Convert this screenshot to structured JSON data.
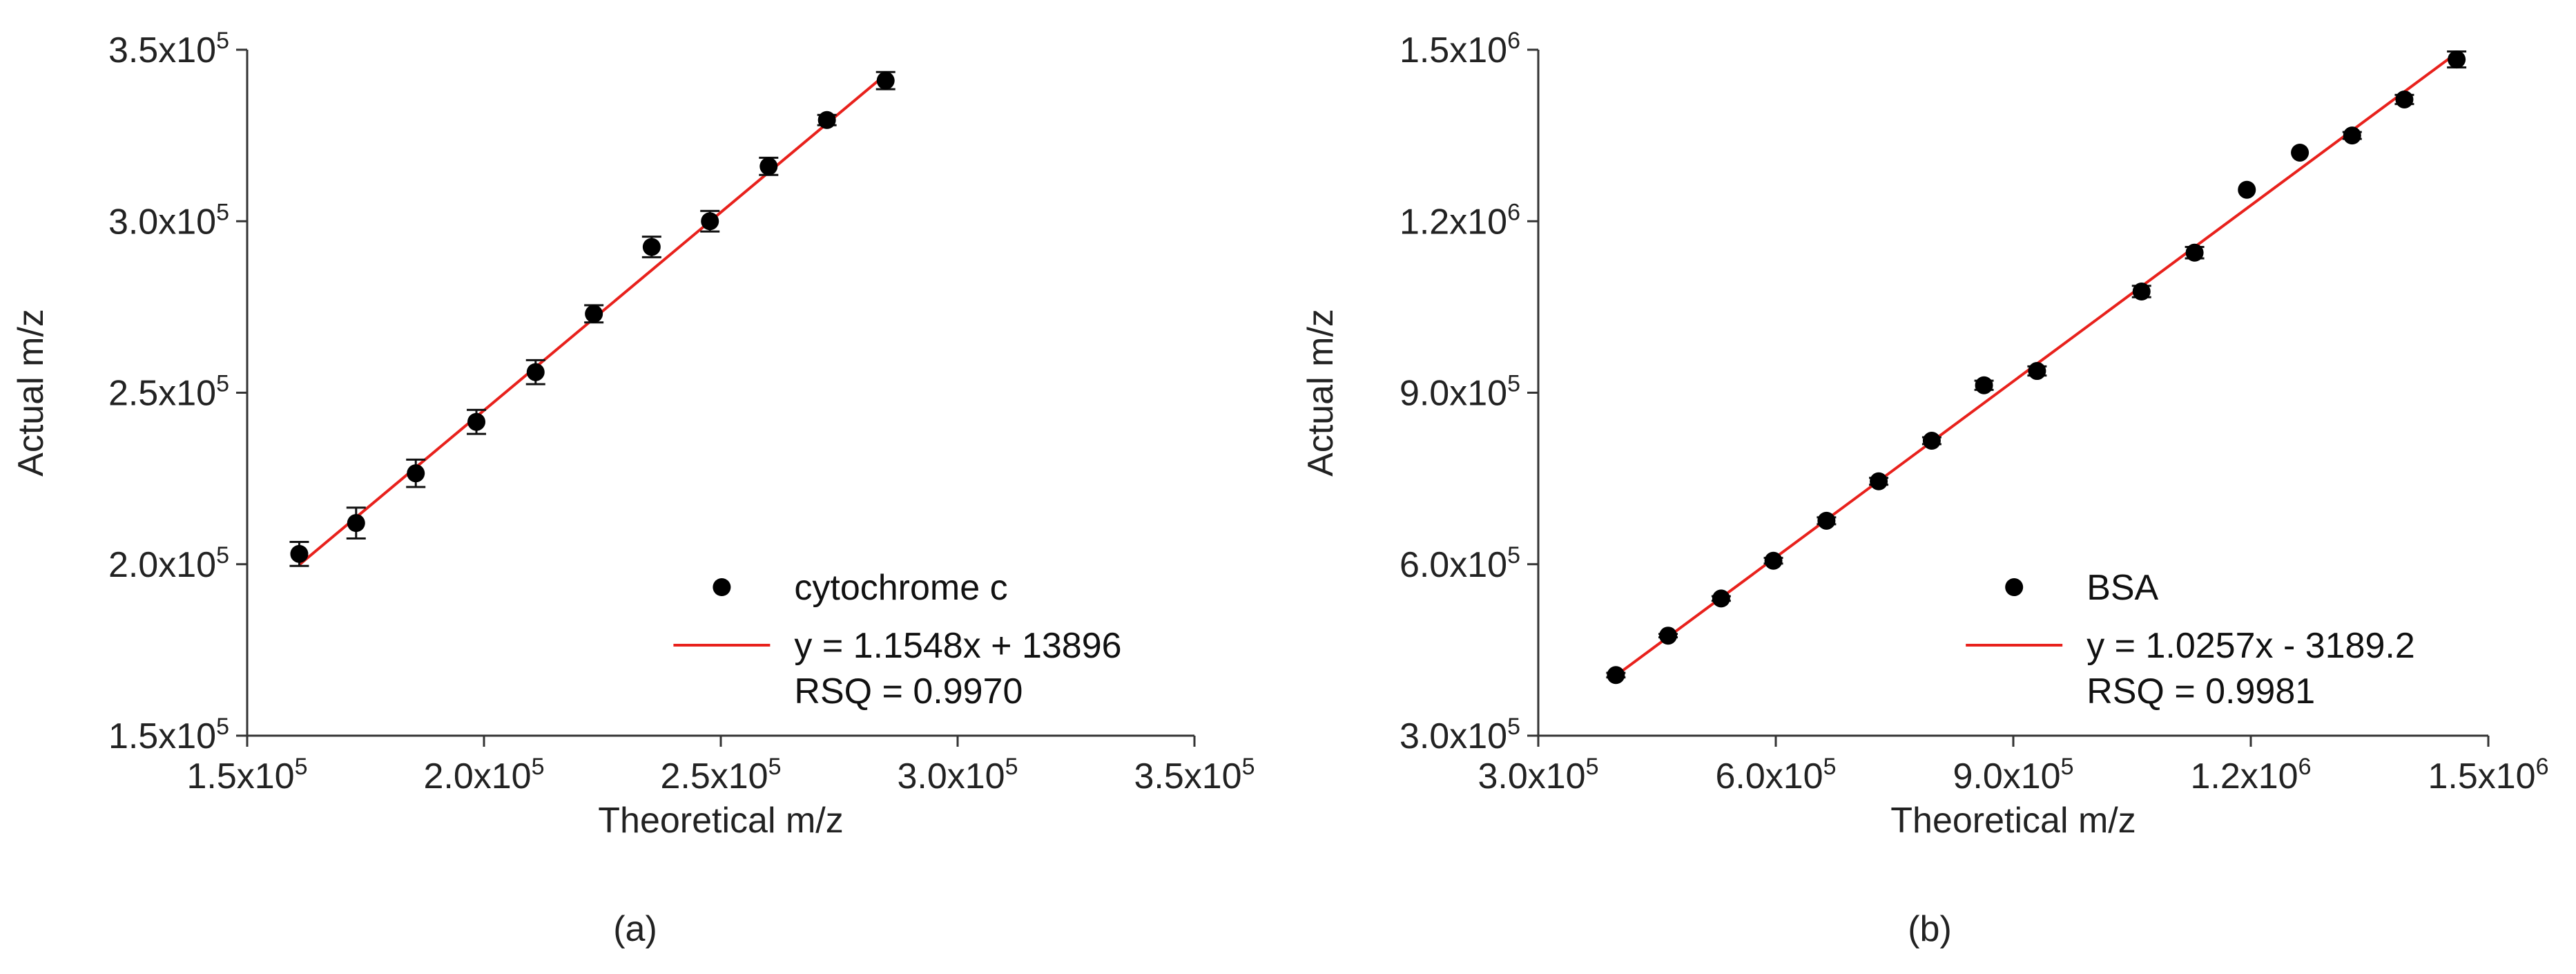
{
  "chart_data": [
    {
      "type": "scatter",
      "panel_label": "(a)",
      "xlabel": "Theoretical m/z",
      "ylabel": "Actual m/z",
      "xlim": [
        150000,
        350000
      ],
      "ylim": [
        150000,
        350000
      ],
      "x_ticks": [
        {
          "value": 150000,
          "mantissa": "1.5x10",
          "exp": "5"
        },
        {
          "value": 200000,
          "mantissa": "2.0x10",
          "exp": "5"
        },
        {
          "value": 250000,
          "mantissa": "2.5x10",
          "exp": "5"
        },
        {
          "value": 300000,
          "mantissa": "3.0x10",
          "exp": "5"
        },
        {
          "value": 350000,
          "mantissa": "3.5x10",
          "exp": "5"
        }
      ],
      "y_ticks": [
        {
          "value": 150000,
          "mantissa": "1.5x10",
          "exp": "5"
        },
        {
          "value": 200000,
          "mantissa": "2.0x10",
          "exp": "5"
        },
        {
          "value": 250000,
          "mantissa": "2.5x10",
          "exp": "5"
        },
        {
          "value": 300000,
          "mantissa": "3.0x10",
          "exp": "5"
        },
        {
          "value": 350000,
          "mantissa": "3.5x10",
          "exp": "5"
        }
      ],
      "grid": false,
      "legend_position": "bottom-right",
      "series": [
        {
          "name": "cytochrome c",
          "color": "#000000",
          "x": [
            161000,
            173000,
            185600,
            198400,
            210900,
            223200,
            235400,
            247700,
            260100,
            272400,
            284800
          ],
          "y": [
            203000,
            212000,
            226500,
            241500,
            256000,
            273000,
            292500,
            300000,
            316000,
            329500,
            341000
          ],
          "y_error": [
            3500,
            4500,
            4000,
            3500,
            3500,
            2500,
            3000,
            3000,
            2500,
            1500,
            2500
          ]
        }
      ],
      "fit": {
        "label": "y = 1.1548x + 13896",
        "slope": 1.1548,
        "intercept": 13896,
        "x_range": [
          161000,
          284800
        ],
        "rsq_label": "RSQ = 0.9970",
        "color": "#e8211c"
      }
    },
    {
      "type": "scatter",
      "panel_label": "(b)",
      "xlabel": "Theoretical m/z",
      "ylabel": "Actual m/z",
      "xlim": [
        300000,
        1500000
      ],
      "ylim": [
        300000,
        1500000
      ],
      "x_ticks": [
        {
          "value": 300000,
          "mantissa": "3.0x10",
          "exp": "5"
        },
        {
          "value": 600000,
          "mantissa": "6.0x10",
          "exp": "5"
        },
        {
          "value": 900000,
          "mantissa": "9.0x10",
          "exp": "5"
        },
        {
          "value": 1200000,
          "mantissa": "1.2x10",
          "exp": "6"
        },
        {
          "value": 1500000,
          "mantissa": "1.5x10",
          "exp": "6"
        }
      ],
      "y_ticks": [
        {
          "value": 300000,
          "mantissa": "3.0x10",
          "exp": "5"
        },
        {
          "value": 600000,
          "mantissa": "6.0x10",
          "exp": "5"
        },
        {
          "value": 900000,
          "mantissa": "9.0x10",
          "exp": "5"
        },
        {
          "value": 1200000,
          "mantissa": "1.2x10",
          "exp": "6"
        },
        {
          "value": 1500000,
          "mantissa": "1.5x10",
          "exp": "6"
        }
      ],
      "grid": false,
      "legend_position": "bottom-right",
      "series": [
        {
          "name": "BSA",
          "color": "#000000",
          "x": [
            398000,
            464000,
            531000,
            597000,
            664000,
            730000,
            797000,
            863000,
            930000,
            1062000,
            1129000,
            1195000,
            1262000,
            1328000,
            1394000,
            1460000
          ],
          "y": [
            406000,
            475000,
            540000,
            606000,
            676000,
            745000,
            816000,
            913000,
            938000,
            1077000,
            1145000,
            1255000,
            1320000,
            1350000,
            1413000,
            1483000
          ],
          "y_error": [
            4000,
            3000,
            4000,
            5000,
            6000,
            6000,
            6000,
            8000,
            8000,
            10000,
            10000,
            0,
            0,
            6000,
            8000,
            14000
          ]
        }
      ],
      "fit": {
        "label": "y = 1.0257x - 3189.2",
        "slope": 1.0257,
        "intercept": -3189.2,
        "x_range": [
          398000,
          1460000
        ],
        "rsq_label": "RSQ = 0.9981",
        "color": "#e8211c"
      }
    }
  ]
}
